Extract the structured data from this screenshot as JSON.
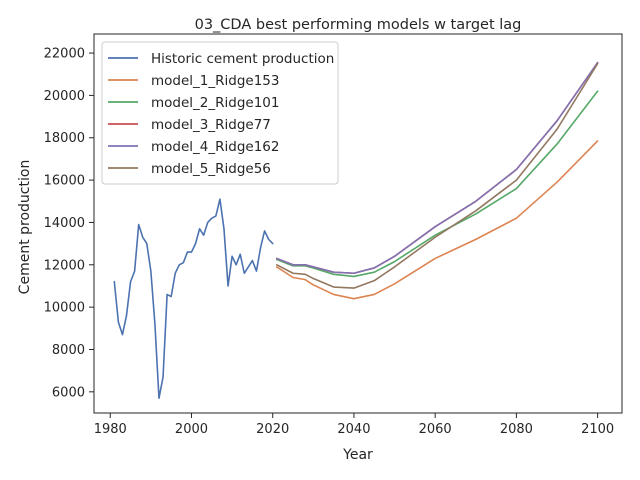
{
  "chart_data": {
    "type": "line",
    "title": "03_CDA best performing models w target lag",
    "xlabel": "Year",
    "ylabel": "Cement production",
    "xlim": [
      1976,
      2106
    ],
    "ylim": [
      5000,
      22900
    ],
    "xticks": [
      1980,
      2000,
      2020,
      2040,
      2060,
      2080,
      2100
    ],
    "yticks": [
      6000,
      8000,
      10000,
      12000,
      14000,
      16000,
      18000,
      20000,
      22000
    ],
    "grid": false,
    "legend_position": "upper-left",
    "series": [
      {
        "name": "Historic cement production",
        "color": "#4c72b0",
        "x": [
          1981,
          1982,
          1983,
          1984,
          1985,
          1986,
          1987,
          1988,
          1989,
          1990,
          1991,
          1992,
          1993,
          1994,
          1995,
          1996,
          1997,
          1998,
          1999,
          2000,
          2001,
          2002,
          2003,
          2004,
          2005,
          2006,
          2007,
          2008,
          2009,
          2010,
          2011,
          2012,
          2013,
          2014,
          2015,
          2016,
          2017,
          2018,
          2019,
          2020
        ],
        "y": [
          11200,
          9300,
          8700,
          9600,
          11200,
          11700,
          13900,
          13300,
          13000,
          11700,
          9200,
          5700,
          6700,
          10600,
          10500,
          11600,
          12000,
          12100,
          12600,
          12600,
          13000,
          13700,
          13400,
          14000,
          14200,
          14300,
          15100,
          13700,
          11000,
          12400,
          12000,
          12500,
          11600,
          11900,
          12200,
          11700,
          12800,
          13600,
          13200,
          13000
        ]
      },
      {
        "name": "model_1_Ridge153",
        "color": "#dd8452",
        "x": [
          2021,
          2025,
          2028,
          2030,
          2035,
          2040,
          2045,
          2050,
          2060,
          2070,
          2080,
          2090,
          2100
        ],
        "y": [
          11900,
          11400,
          11300,
          11050,
          10600,
          10400,
          10600,
          11100,
          12300,
          13200,
          14200,
          15900,
          17850
        ]
      },
      {
        "name": "model_2_Ridge101",
        "color": "#55a868",
        "x": [
          2021,
          2025,
          2028,
          2030,
          2035,
          2040,
          2045,
          2050,
          2060,
          2070,
          2080,
          2090,
          2100
        ],
        "y": [
          12250,
          11950,
          11950,
          11850,
          11550,
          11450,
          11650,
          12150,
          13400,
          14400,
          15600,
          17700,
          20200
        ]
      },
      {
        "name": "model_3_Ridge77",
        "color": "#c44e52",
        "x": [
          2021,
          2025,
          2028,
          2030,
          2035,
          2040,
          2045,
          2050,
          2060,
          2070,
          2080,
          2090,
          2100
        ],
        "y": [
          12300,
          12000,
          12000,
          11900,
          11650,
          11600,
          11850,
          12400,
          13800,
          15000,
          16500,
          18800,
          21550
        ]
      },
      {
        "name": "model_4_Ridge162",
        "color": "#8172b3",
        "x": [
          2021,
          2025,
          2028,
          2030,
          2035,
          2040,
          2045,
          2050,
          2060,
          2070,
          2080,
          2090,
          2100
        ],
        "y": [
          12300,
          12000,
          12000,
          11900,
          11650,
          11600,
          11850,
          12400,
          13800,
          15000,
          16500,
          18800,
          21550
        ]
      },
      {
        "name": "model_5_Ridge56",
        "color": "#937860",
        "x": [
          2021,
          2025,
          2028,
          2030,
          2035,
          2040,
          2045,
          2050,
          2060,
          2070,
          2080,
          2090,
          2100
        ],
        "y": [
          12000,
          11600,
          11550,
          11350,
          10950,
          10900,
          11250,
          11900,
          13300,
          14550,
          16000,
          18400,
          21500
        ]
      }
    ]
  }
}
